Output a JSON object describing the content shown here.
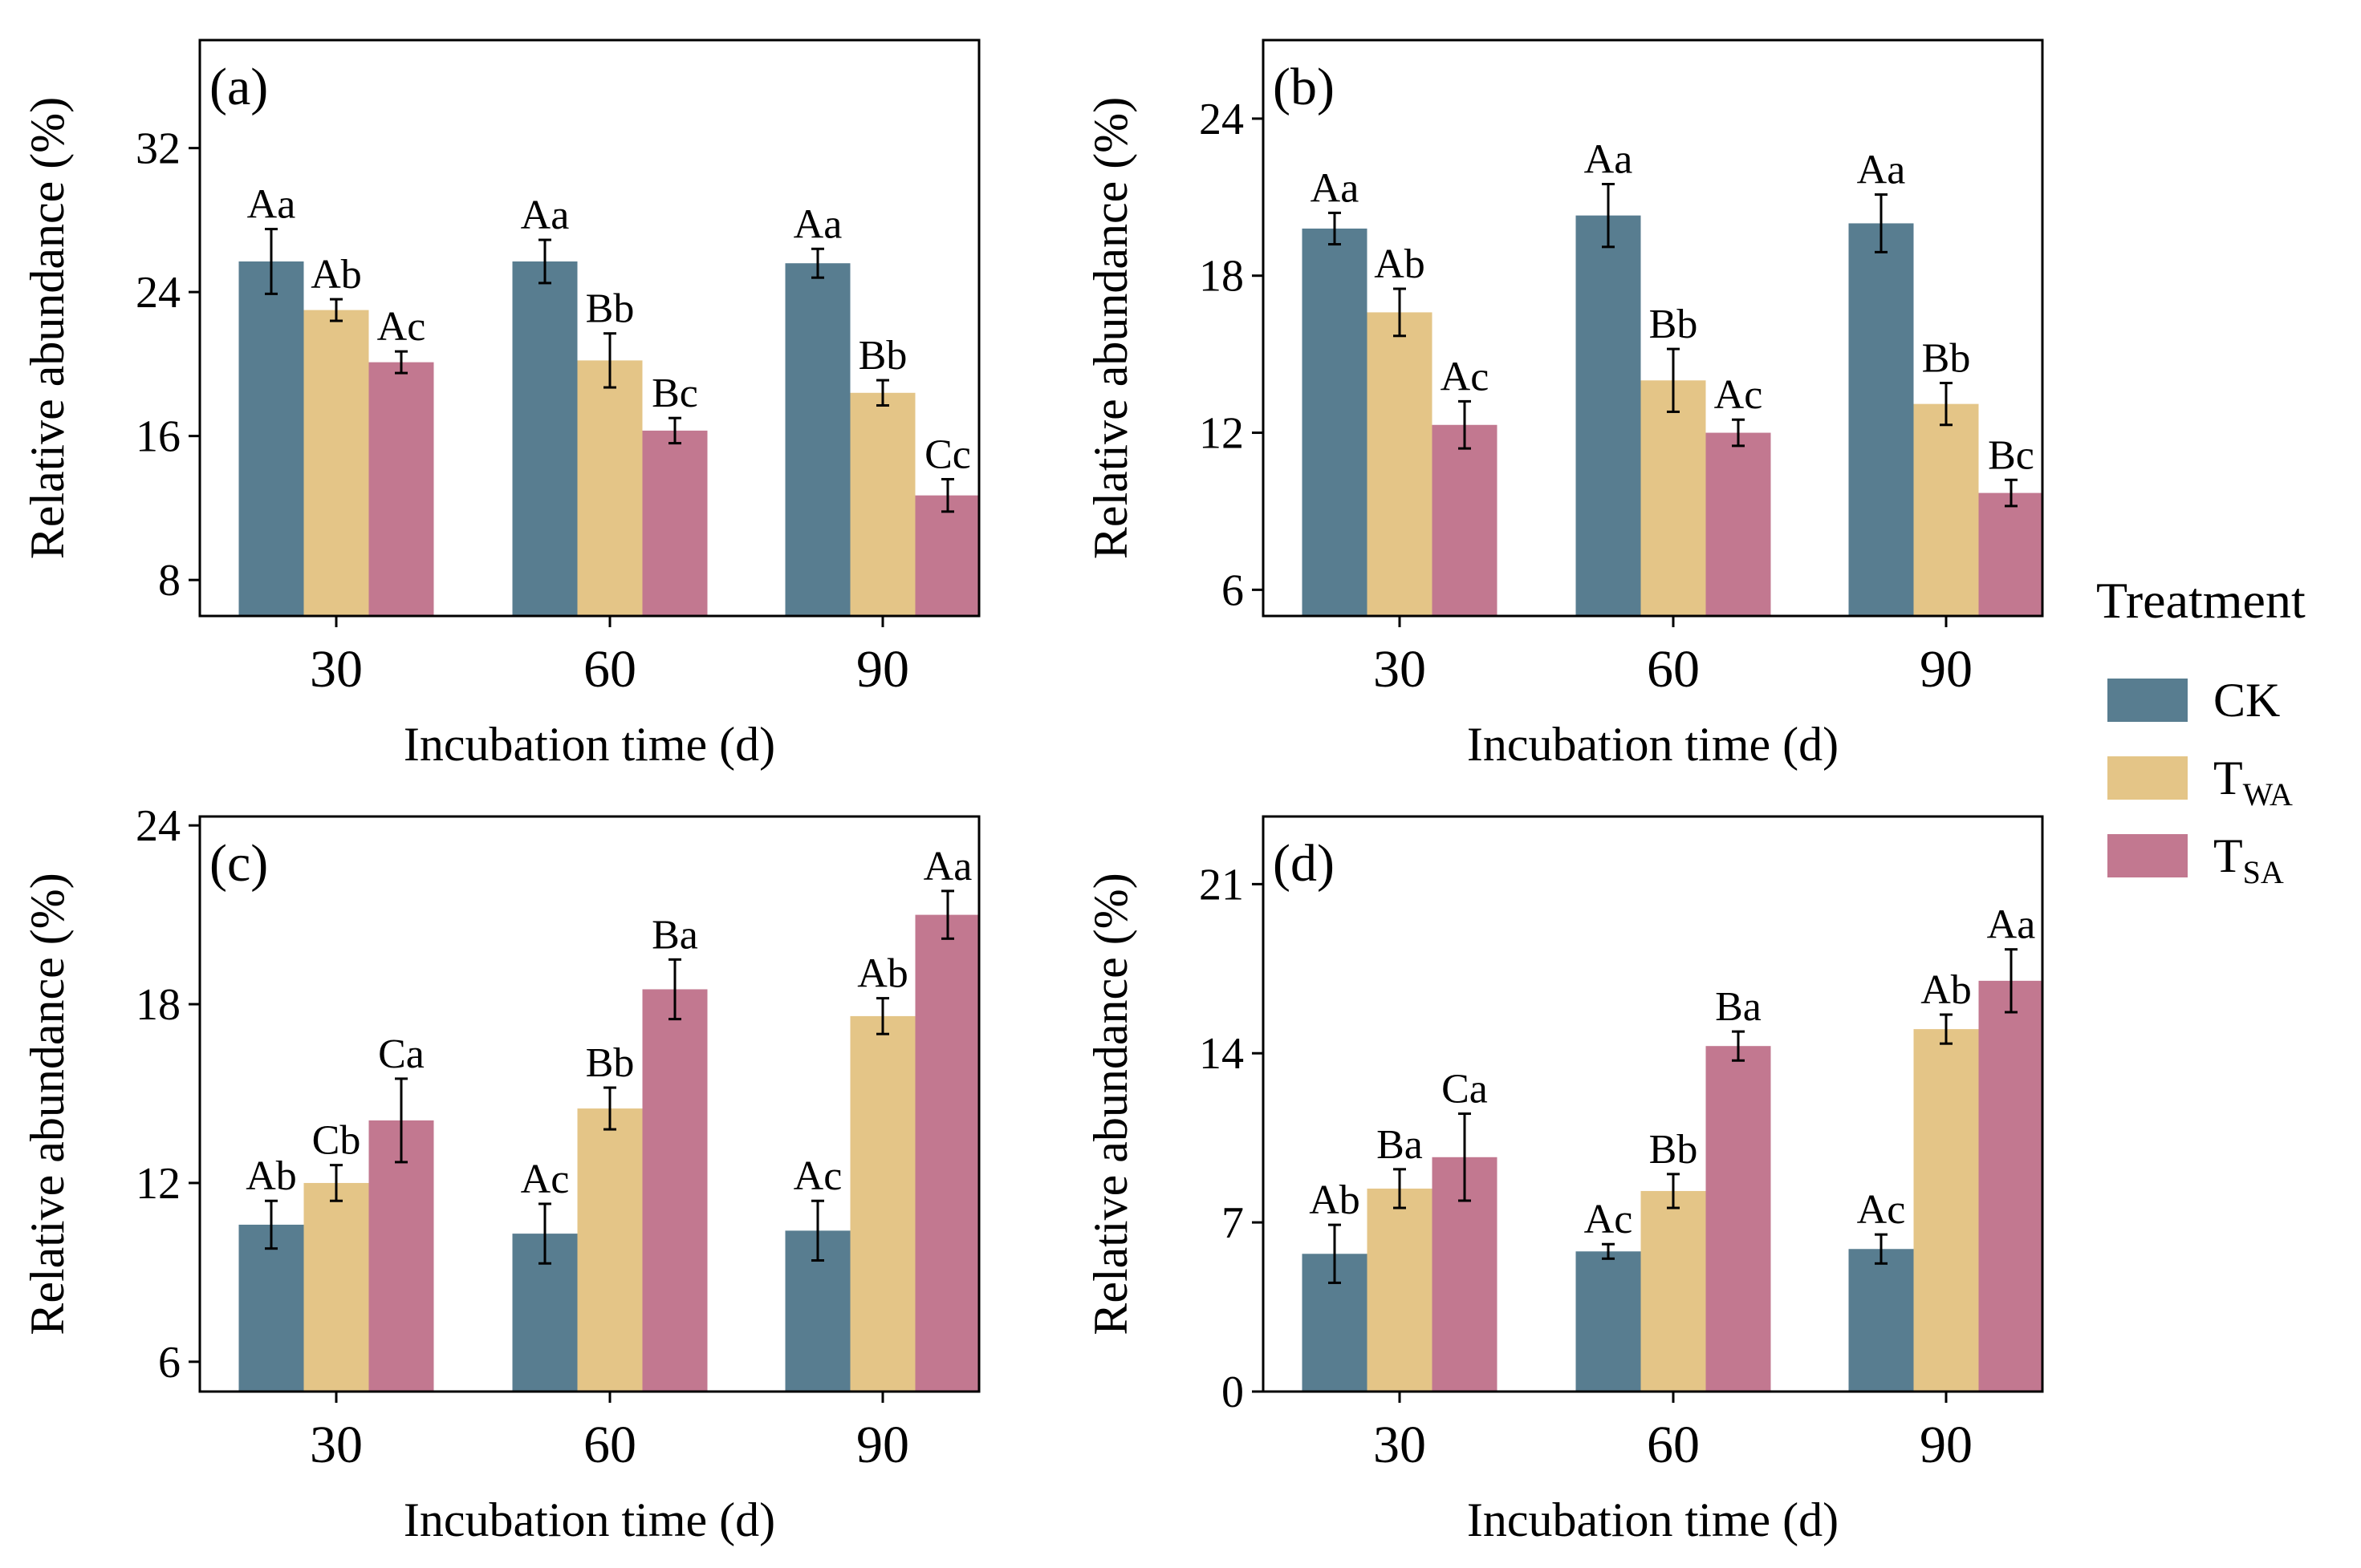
{
  "legend": {
    "title": "Treatment",
    "items": [
      {
        "key": "CK",
        "main": "CK",
        "sub": "",
        "color": "#587d90"
      },
      {
        "key": "TWA",
        "main": "T",
        "sub": "WA",
        "color": "#e4c587"
      },
      {
        "key": "TSA",
        "main": "T",
        "sub": "SA",
        "color": "#c27890"
      }
    ]
  },
  "chart_data": [
    {
      "type": "bar",
      "panel_label": "(a)",
      "title": "",
      "xlabel": "Incubation time (d)",
      "ylabel": "Relative abundance (%)",
      "categories": [
        "30",
        "60",
        "90"
      ],
      "ylim": [
        6,
        38
      ],
      "yticks": [
        8,
        16,
        24,
        32
      ],
      "series": [
        {
          "name": "CK",
          "values": [
            25.7,
            25.7,
            25.6
          ],
          "errors": [
            1.8,
            1.2,
            0.8
          ],
          "labels": [
            "Aa",
            "Aa",
            "Aa"
          ]
        },
        {
          "name": "TWA",
          "values": [
            23.0,
            20.2,
            18.4
          ],
          "errors": [
            0.6,
            1.5,
            0.7
          ],
          "labels": [
            "Ab",
            "Bb",
            "Bb"
          ]
        },
        {
          "name": "TSA",
          "values": [
            20.1,
            16.3,
            12.7
          ],
          "errors": [
            0.6,
            0.7,
            0.9
          ],
          "labels": [
            "Ac",
            "Bc",
            "Cc"
          ]
        }
      ]
    },
    {
      "type": "bar",
      "panel_label": "(b)",
      "title": "",
      "xlabel": "Incubation time (d)",
      "ylabel": "Relative abundance (%)",
      "categories": [
        "30",
        "60",
        "90"
      ],
      "ylim": [
        5,
        27
      ],
      "yticks": [
        6,
        12,
        18,
        24
      ],
      "series": [
        {
          "name": "CK",
          "values": [
            19.8,
            20.3,
            20.0
          ],
          "errors": [
            0.6,
            1.2,
            1.1
          ],
          "labels": [
            "Aa",
            "Aa",
            "Aa"
          ]
        },
        {
          "name": "TWA",
          "values": [
            16.6,
            14.0,
            13.1
          ],
          "errors": [
            0.9,
            1.2,
            0.8
          ],
          "labels": [
            "Ab",
            "Bb",
            "Bb"
          ]
        },
        {
          "name": "TSA",
          "values": [
            12.3,
            12.0,
            9.7
          ],
          "errors": [
            0.9,
            0.5,
            0.5
          ],
          "labels": [
            "Ac",
            "Ac",
            "Bc"
          ]
        }
      ]
    },
    {
      "type": "bar",
      "panel_label": "(c)",
      "title": "",
      "xlabel": "Incubation time (d)",
      "ylabel": "Relative abundance (%)",
      "categories": [
        "30",
        "60",
        "90"
      ],
      "ylim": [
        5,
        24.3
      ],
      "yticks": [
        6,
        12,
        18,
        24
      ],
      "series": [
        {
          "name": "CK",
          "values": [
            10.6,
            10.3,
            10.4
          ],
          "errors": [
            0.8,
            1.0,
            1.0
          ],
          "labels": [
            "Ab",
            "Ac",
            "Ac"
          ]
        },
        {
          "name": "TWA",
          "values": [
            12.0,
            14.5,
            17.6
          ],
          "errors": [
            0.6,
            0.7,
            0.6
          ],
          "labels": [
            "Cb",
            "Bb",
            "Ab"
          ]
        },
        {
          "name": "TSA",
          "values": [
            14.1,
            18.5,
            21.0
          ],
          "errors": [
            1.4,
            1.0,
            0.8
          ],
          "labels": [
            "Ca",
            "Ba",
            "Aa"
          ]
        }
      ]
    },
    {
      "type": "bar",
      "panel_label": "(d)",
      "title": "",
      "xlabel": "Incubation time (d)",
      "ylabel": "Relative abundance (%)",
      "categories": [
        "30",
        "60",
        "90"
      ],
      "ylim": [
        0,
        23.8
      ],
      "yticks": [
        0,
        7,
        14,
        21
      ],
      "series": [
        {
          "name": "CK",
          "values": [
            5.7,
            5.8,
            5.9
          ],
          "errors": [
            1.2,
            0.3,
            0.6
          ],
          "labels": [
            "Ab",
            "Ac",
            "Ac"
          ]
        },
        {
          "name": "TWA",
          "values": [
            8.4,
            8.3,
            15.0
          ],
          "errors": [
            0.8,
            0.7,
            0.6
          ],
          "labels": [
            "Ba",
            "Bb",
            "Ab"
          ]
        },
        {
          "name": "TSA",
          "values": [
            9.7,
            14.3,
            17.0
          ],
          "errors": [
            1.8,
            0.6,
            1.3
          ],
          "labels": [
            "Ca",
            "Ba",
            "Aa"
          ]
        }
      ]
    }
  ]
}
